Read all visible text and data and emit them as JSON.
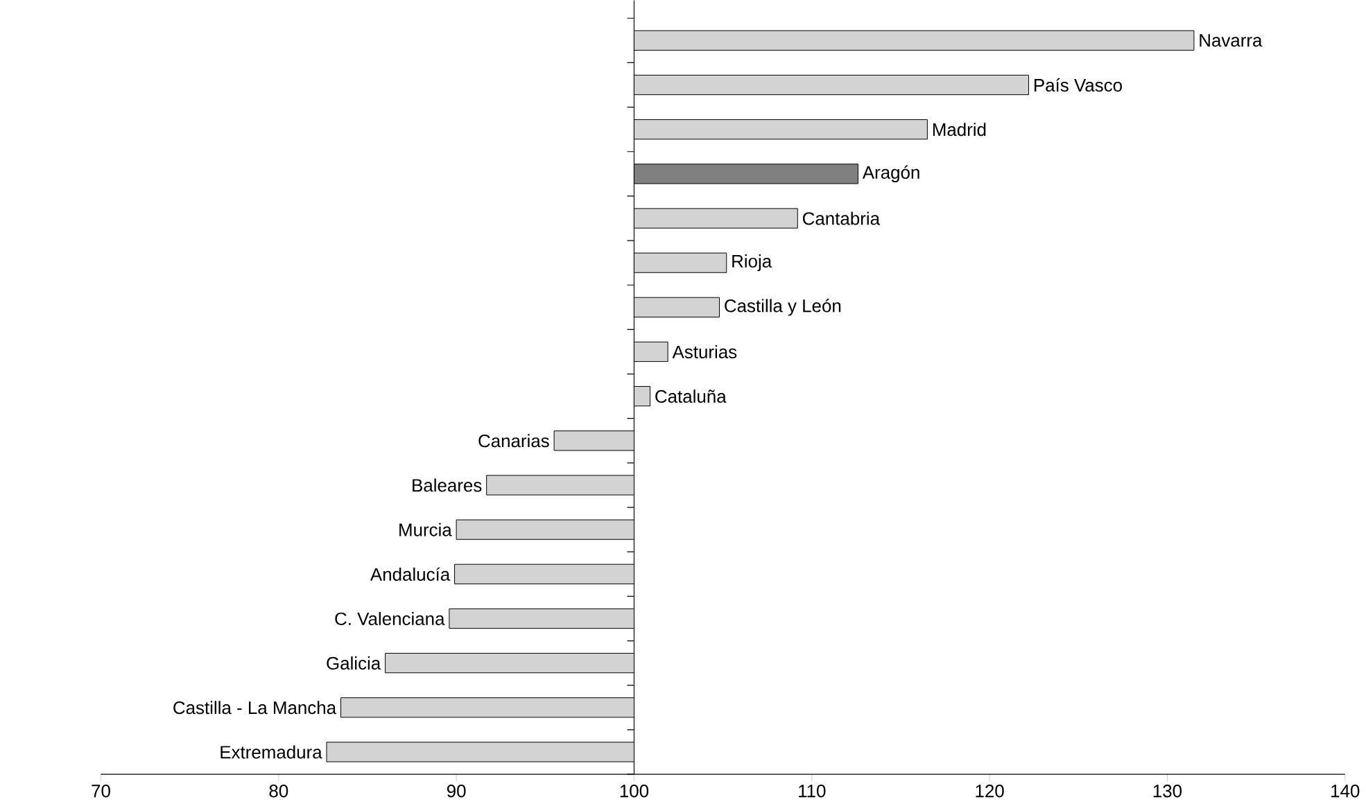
{
  "chart_data": {
    "type": "bar",
    "orientation": "horizontal",
    "categories": [
      "Navarra",
      "País Vasco",
      "Madrid",
      "Aragón",
      "Cantabria",
      "Rioja",
      "Castilla y León",
      "Asturias",
      "Cataluña",
      "Canarias",
      "Baleares",
      "Murcia",
      "Andalucía",
      "C. Valenciana",
      "Galicia",
      "Castilla - La Mancha",
      "Extremadura"
    ],
    "base": [
      100,
      100,
      100,
      100,
      100,
      100,
      100,
      100,
      100,
      100,
      100,
      100,
      100,
      100,
      100,
      100,
      100
    ],
    "values": [
      31.5,
      22.2,
      16.5,
      12.6,
      9.2,
      5.2,
      4.8,
      1.9,
      0.9,
      -4.5,
      -8.3,
      -10.0,
      -10.1,
      -10.4,
      -14.0,
      -16.5,
      -17.3
    ],
    "colors": [
      "#d3d3d3",
      "#d3d3d3",
      "#d3d3d3",
      "#808080",
      "#d3d3d3",
      "#d3d3d3",
      "#d3d3d3",
      "#d3d3d3",
      "#d3d3d3",
      "#d3d3d3",
      "#d3d3d3",
      "#d3d3d3",
      "#d3d3d3",
      "#d3d3d3",
      "#d3d3d3",
      "#d3d3d3",
      "#d3d3d3"
    ],
    "xlim": [
      70,
      140
    ],
    "xticks": [
      70,
      80,
      90,
      100,
      110,
      120,
      130,
      140
    ]
  }
}
